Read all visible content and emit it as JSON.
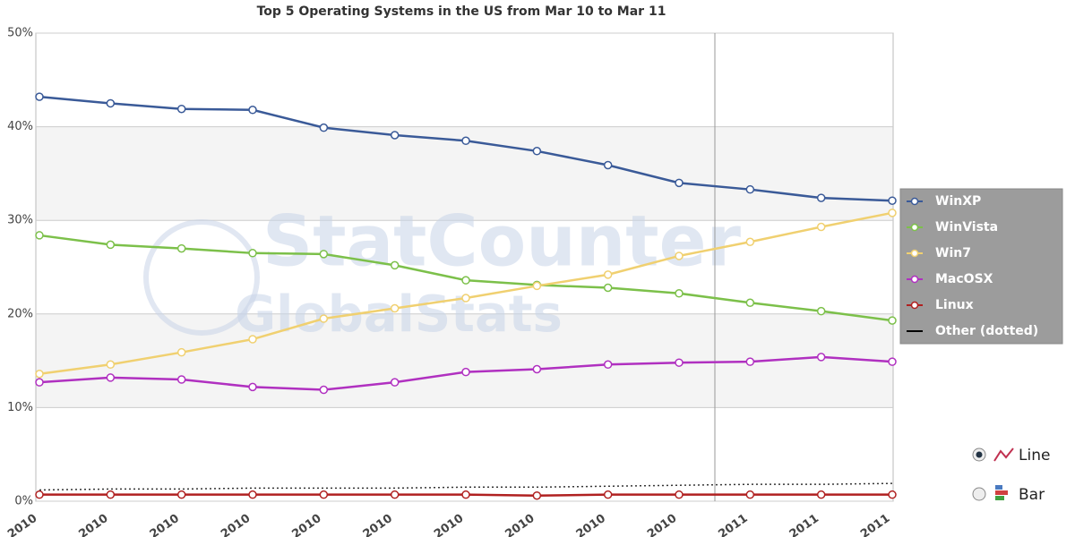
{
  "chart_data": {
    "type": "line",
    "title": "Top 5 Operating Systems in the US from Mar 10 to Mar 11",
    "watermark": [
      "StatCounter",
      "GlobalStats"
    ],
    "categories": [
      "2010",
      "2010",
      "2010",
      "2010",
      "2010",
      "2010",
      "2010",
      "2010",
      "2010",
      "2010",
      "2011",
      "2011",
      "2011"
    ],
    "ylim": [
      0,
      50
    ],
    "yticks": [
      {
        "value": 0,
        "label": "0%"
      },
      {
        "value": 10,
        "label": "10%"
      },
      {
        "value": 20,
        "label": "20%"
      },
      {
        "value": 30,
        "label": "30%"
      },
      {
        "value": 40,
        "label": "40%"
      },
      {
        "value": 50,
        "label": "50%"
      }
    ],
    "grid": true,
    "legend": "right",
    "series": [
      {
        "name": "WinXP",
        "color": "#3a5a98",
        "values": [
          43.2,
          42.5,
          41.9,
          41.8,
          39.9,
          39.1,
          38.5,
          37.4,
          35.9,
          34.0,
          33.3,
          32.4,
          32.1
        ]
      },
      {
        "name": "WinVista",
        "color": "#7cc04a",
        "values": [
          28.4,
          27.4,
          27.0,
          26.5,
          26.4,
          25.2,
          23.6,
          23.1,
          22.8,
          22.2,
          21.2,
          20.3,
          19.3
        ]
      },
      {
        "name": "Win7",
        "color": "#f0d070",
        "values": [
          13.6,
          14.6,
          15.9,
          17.3,
          19.5,
          20.6,
          21.7,
          23.0,
          24.2,
          26.2,
          27.7,
          29.3,
          30.8
        ]
      },
      {
        "name": "MacOSX",
        "color": "#b030c0",
        "values": [
          12.7,
          13.2,
          13.0,
          12.2,
          11.9,
          12.7,
          13.8,
          14.1,
          14.6,
          14.8,
          14.9,
          15.4,
          14.9
        ]
      },
      {
        "name": "Linux",
        "color": "#b02020",
        "values": [
          0.7,
          0.7,
          0.7,
          0.7,
          0.7,
          0.7,
          0.7,
          0.6,
          0.7,
          0.7,
          0.7,
          0.7,
          0.7
        ]
      },
      {
        "name": "Other (dotted)",
        "color": "#333333",
        "dotted": true,
        "values": [
          1.2,
          1.3,
          1.3,
          1.4,
          1.4,
          1.4,
          1.5,
          1.5,
          1.6,
          1.7,
          1.8,
          1.8,
          1.9
        ]
      }
    ]
  },
  "controls": [
    "Line",
    "Bar"
  ]
}
